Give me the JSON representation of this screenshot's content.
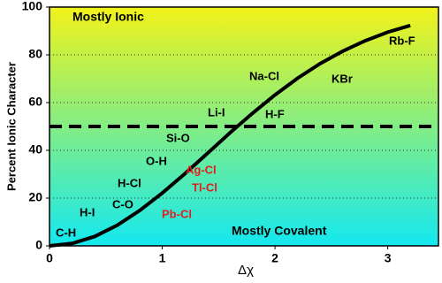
{
  "chart_data": {
    "type": "line",
    "x_label": "Δχ",
    "y_label": "Percent Ionic Character",
    "x": [
      0,
      0.2,
      0.4,
      0.6,
      0.8,
      1.0,
      1.2,
      1.4,
      1.6,
      1.8,
      2.0,
      2.2,
      2.4,
      2.6,
      2.8,
      3.0,
      3.2
    ],
    "series": [
      {
        "color": "#000000",
        "values": [
          0,
          1.0,
          3.9,
          8.6,
          14.8,
          22.1,
          30.2,
          38.7,
          47.3,
          55.5,
          63.2,
          70.2,
          76.3,
          81.5,
          85.9,
          89.5,
          92.3
        ]
      }
    ],
    "xlim": [
      0,
      3.45
    ],
    "ylim": [
      0,
      100
    ],
    "xticks": [
      0,
      1,
      2,
      3
    ],
    "yticks": [
      0,
      20,
      40,
      60,
      80,
      100
    ],
    "grid": true,
    "reference_line": 50,
    "background_top": "#f2f21a",
    "background_bottom": "#14e8f0",
    "region_labels": [
      "Mostly Ionic",
      "Mostly Covalent"
    ],
    "annotations": [
      {
        "text": "Rb-F",
        "color": "#000000"
      },
      {
        "text": "Na-Cl",
        "color": "#000000"
      },
      {
        "text": "KBr",
        "color": "#000000"
      },
      {
        "text": "Li-I",
        "color": "#000000"
      },
      {
        "text": "H-F",
        "color": "#000000"
      },
      {
        "text": "Si-O",
        "color": "#000000"
      },
      {
        "text": "O-H",
        "color": "#000000"
      },
      {
        "text": "Ag-Cl",
        "color": "#e02020"
      },
      {
        "text": "H-Cl",
        "color": "#000000"
      },
      {
        "text": "Tl-Cl",
        "color": "#e02020"
      },
      {
        "text": "C-O",
        "color": "#000000"
      },
      {
        "text": "Pb-Cl",
        "color": "#e02020"
      },
      {
        "text": "H-I",
        "color": "#000000"
      },
      {
        "text": "C-H",
        "color": "#000000"
      }
    ]
  }
}
